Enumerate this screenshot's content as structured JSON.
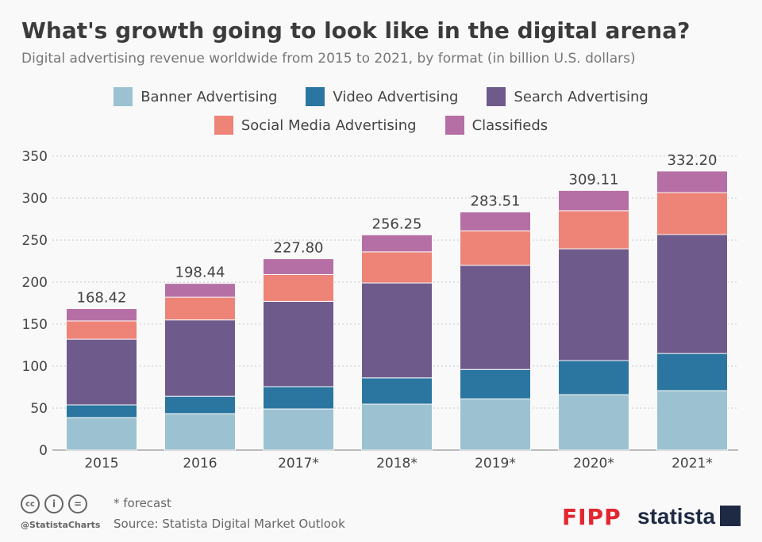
{
  "title": "What's growth going to look like in the digital arena?",
  "subtitle": "Digital advertising revenue worldwide from 2015 to 2021, by format (in billion U.S. dollars)",
  "chart_data": {
    "type": "bar",
    "stacked": true,
    "categories": [
      "2015",
      "2016",
      "2017*",
      "2018*",
      "2019*",
      "2020*",
      "2021*"
    ],
    "series": [
      {
        "name": "Banner Advertising",
        "color": "#9cc2d1",
        "values": [
          38.7,
          43.4,
          49,
          54.7,
          61,
          66,
          70.8
        ]
      },
      {
        "name": "Video Advertising",
        "color": "#2a76a1",
        "values": [
          15.1,
          20.6,
          26.5,
          31.3,
          35,
          40.6,
          44.2
        ]
      },
      {
        "name": "Search Advertising",
        "color": "#6e5b8b",
        "values": [
          78.2,
          91,
          101.5,
          113,
          124,
          133,
          141.6
        ]
      },
      {
        "name": "Social Media Advertising",
        "color": "#ee8377",
        "values": [
          21.8,
          27,
          32,
          37,
          41,
          45.4,
          50
        ]
      },
      {
        "name": "Classifieds",
        "color": "#b66fa4",
        "values": [
          14.62,
          16.44,
          18.8,
          20.25,
          22.51,
          24.11,
          25.6
        ]
      }
    ],
    "totals": [
      "168.42",
      "198.44",
      "227.80",
      "256.25",
      "283.51",
      "309.11",
      "332.20"
    ],
    "ylim": [
      0,
      350
    ],
    "yticks": [
      "0",
      "50",
      "100",
      "150",
      "200",
      "250",
      "300",
      "350"
    ],
    "grid": true,
    "legend": "top"
  },
  "footer": {
    "note": "* forecast",
    "handle": "@StatistaCharts",
    "source": "Source: Statista Digital Market Outlook",
    "logo1": "FIPP",
    "logo2": "statista"
  }
}
